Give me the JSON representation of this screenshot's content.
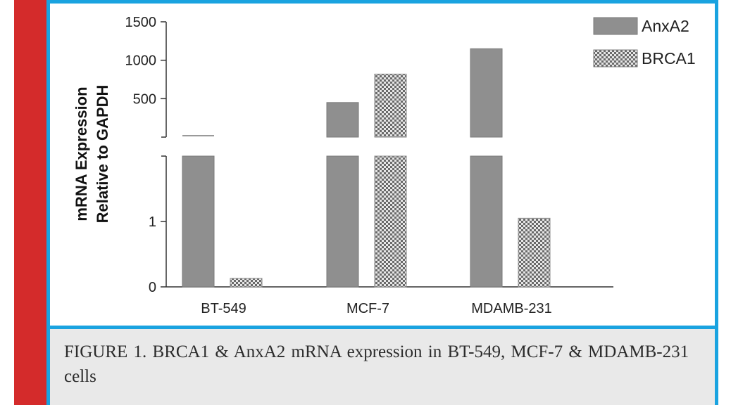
{
  "chart_data": {
    "type": "bar",
    "categories": [
      "BT-549",
      "MCF-7",
      "MDAMB-231"
    ],
    "series": [
      {
        "name": "AnxA2",
        "values": [
          2,
          450,
          1150
        ],
        "color": "#8f8f8f",
        "pattern": "solid"
      },
      {
        "name": "BRCA1",
        "values": [
          0.13,
          820,
          1.05
        ],
        "color": "#b0b0b0",
        "pattern": "checkered"
      }
    ],
    "ylabel": [
      "mRNA Expression",
      "Relative to GAPDH"
    ],
    "xlabel": "",
    "title": "",
    "axis_break": true,
    "y_segments": [
      {
        "ylim": [
          0,
          2
        ],
        "ticks": [
          0,
          1
        ]
      },
      {
        "ylim": [
          0,
          1500
        ],
        "ticks": [
          500,
          1000,
          1500
        ]
      }
    ],
    "legend_position": "top-right",
    "grid": false
  },
  "caption": "FIGURE 1. BRCA1 & AnxA2 mRNA expression in BT-549, MCF-7 & MDAMB-231 cells"
}
